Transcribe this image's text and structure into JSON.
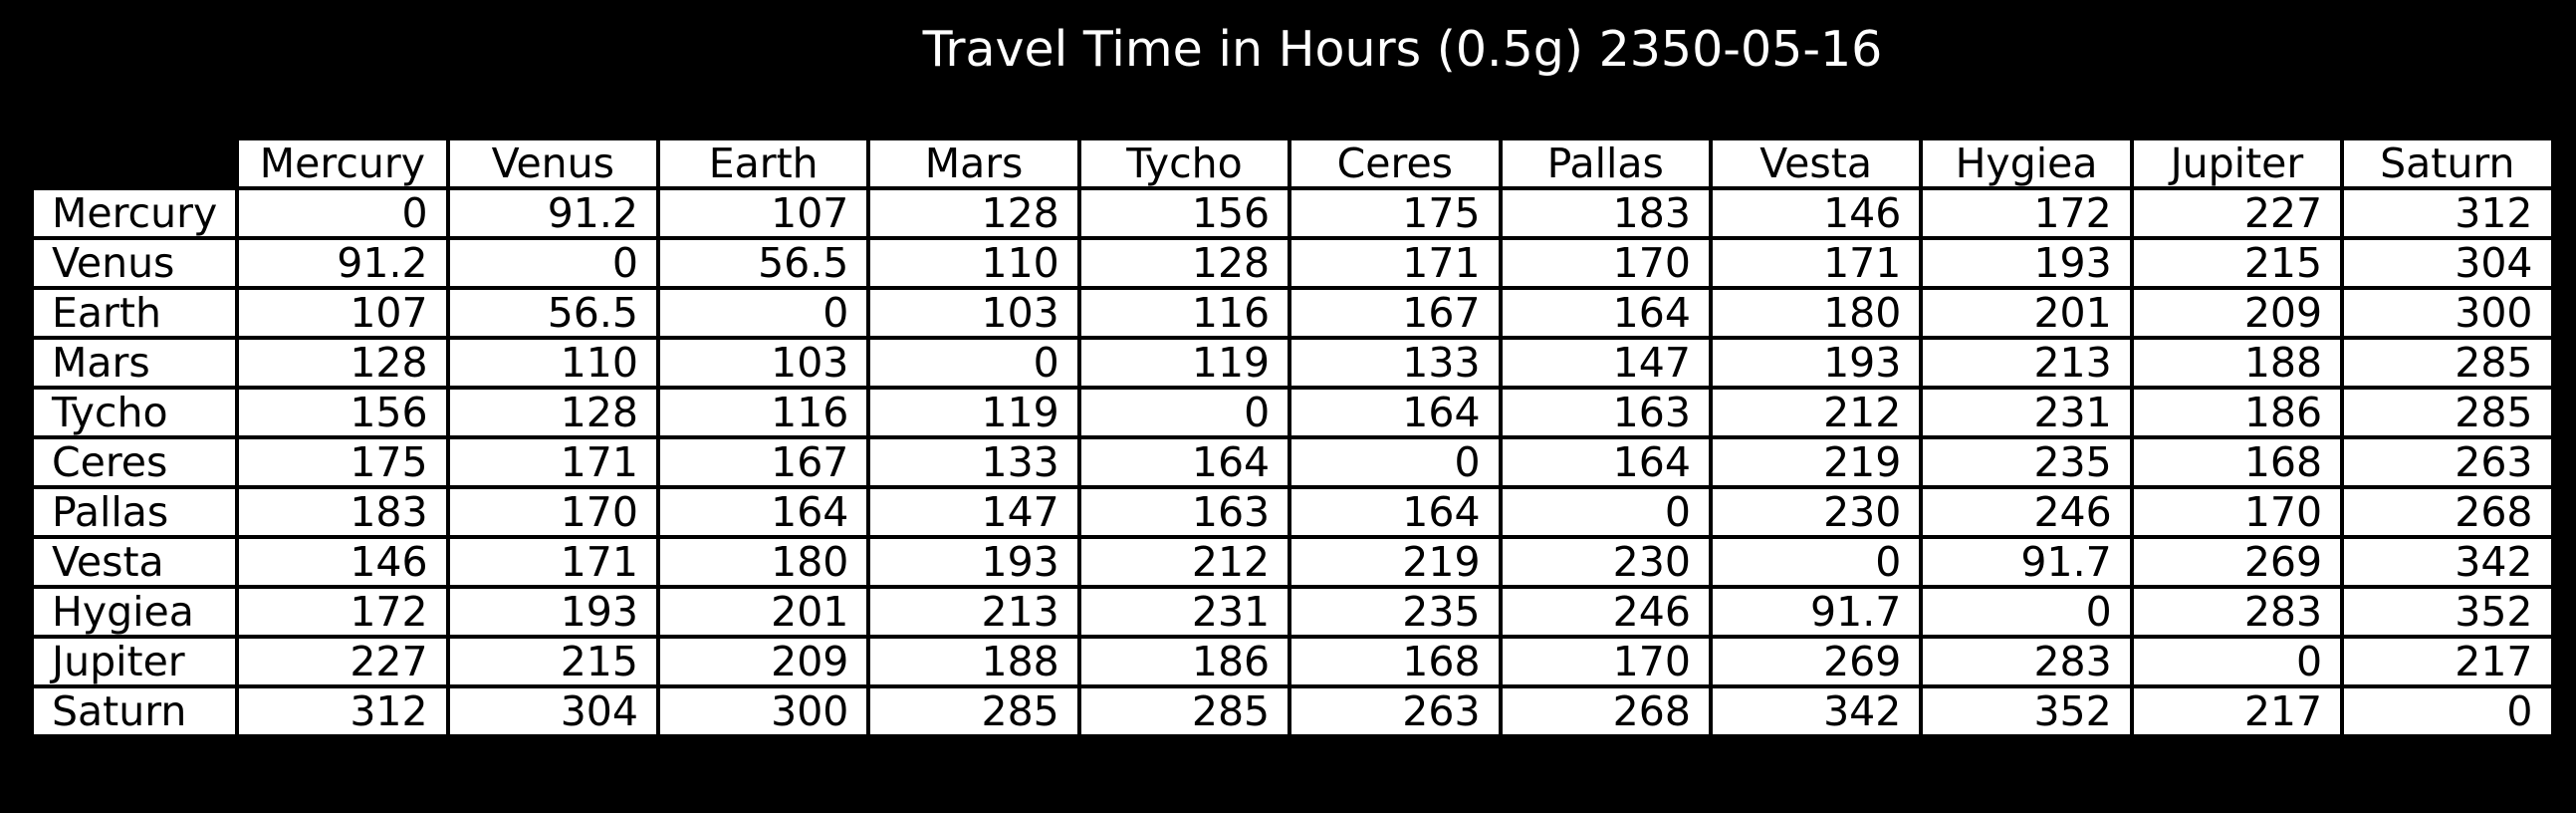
{
  "chart_data": {
    "type": "table",
    "title": "Travel Time in Hours (0.5g) 2350-05-16",
    "columns": [
      "Mercury",
      "Venus",
      "Earth",
      "Mars",
      "Tycho",
      "Ceres",
      "Pallas",
      "Vesta",
      "Hygiea",
      "Jupiter",
      "Saturn"
    ],
    "rows": [
      {
        "label": "Mercury",
        "cells": [
          "0",
          "91.2",
          "107",
          "128",
          "156",
          "175",
          "183",
          "146",
          "172",
          "227",
          "312"
        ]
      },
      {
        "label": "Venus",
        "cells": [
          "91.2",
          "0",
          "56.5",
          "110",
          "128",
          "171",
          "170",
          "171",
          "193",
          "215",
          "304"
        ]
      },
      {
        "label": "Earth",
        "cells": [
          "107",
          "56.5",
          "0",
          "103",
          "116",
          "167",
          "164",
          "180",
          "201",
          "209",
          "300"
        ]
      },
      {
        "label": "Mars",
        "cells": [
          "128",
          "110",
          "103",
          "0",
          "119",
          "133",
          "147",
          "193",
          "213",
          "188",
          "285"
        ]
      },
      {
        "label": "Tycho",
        "cells": [
          "156",
          "128",
          "116",
          "119",
          "0",
          "164",
          "163",
          "212",
          "231",
          "186",
          "285"
        ]
      },
      {
        "label": "Ceres",
        "cells": [
          "175",
          "171",
          "167",
          "133",
          "164",
          "0",
          "164",
          "219",
          "235",
          "168",
          "263"
        ]
      },
      {
        "label": "Pallas",
        "cells": [
          "183",
          "170",
          "164",
          "147",
          "163",
          "164",
          "0",
          "230",
          "246",
          "170",
          "268"
        ]
      },
      {
        "label": "Vesta",
        "cells": [
          "146",
          "171",
          "180",
          "193",
          "212",
          "219",
          "230",
          "0",
          "91.7",
          "269",
          "342"
        ]
      },
      {
        "label": "Hygiea",
        "cells": [
          "172",
          "193",
          "201",
          "213",
          "231",
          "235",
          "246",
          "91.7",
          "0",
          "283",
          "352"
        ]
      },
      {
        "label": "Jupiter",
        "cells": [
          "227",
          "215",
          "209",
          "188",
          "186",
          "168",
          "170",
          "269",
          "283",
          "0",
          "217"
        ]
      },
      {
        "label": "Saturn",
        "cells": [
          "312",
          "304",
          "300",
          "285",
          "285",
          "263",
          "268",
          "342",
          "352",
          "217",
          "0"
        ]
      }
    ]
  },
  "colors": {
    "background": "#000000",
    "cell_background": "#ffffff",
    "text": "#000000",
    "title_text": "#ffffff"
  }
}
